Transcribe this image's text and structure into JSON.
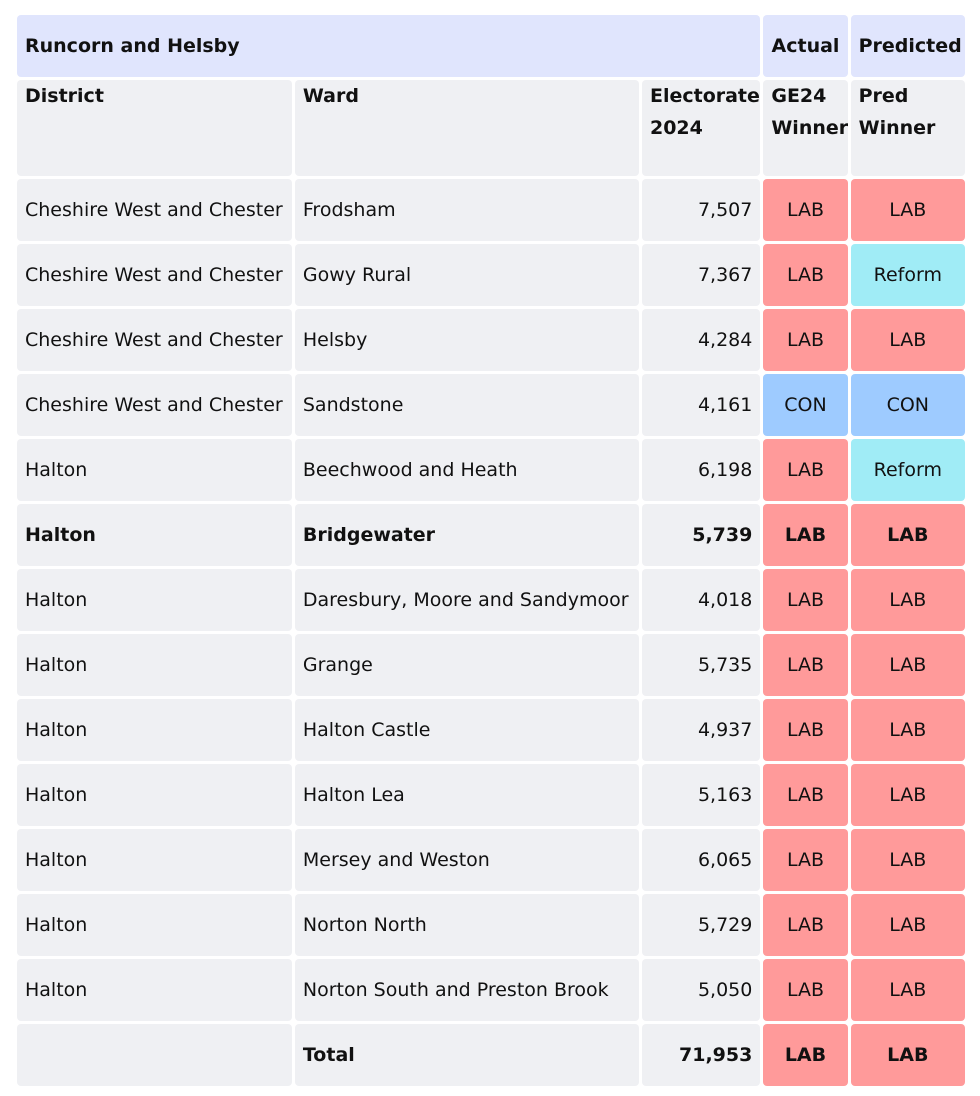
{
  "table": {
    "title": "Runcorn and Helsby",
    "group_headers": {
      "actual": "Actual",
      "predicted": "Predicted"
    },
    "columns": {
      "district": "District",
      "ward": "Ward",
      "electorate_line1": "Electorate",
      "electorate_line2": "2024",
      "ge24_line1": "GE24",
      "ge24_line2": "Winner",
      "pred_line1": "Pred",
      "pred_line2": "Winner"
    },
    "rows": [
      {
        "district": "Cheshire West and Chester",
        "ward": "Frodsham",
        "electorate": "7,507",
        "ge24": "LAB",
        "pred": "LAB"
      },
      {
        "district": "Cheshire West and Chester",
        "ward": "Gowy Rural",
        "electorate": "7,367",
        "ge24": "LAB",
        "pred": "Reform"
      },
      {
        "district": "Cheshire West and Chester",
        "ward": "Helsby",
        "electorate": "4,284",
        "ge24": "LAB",
        "pred": "LAB"
      },
      {
        "district": "Cheshire West and Chester",
        "ward": "Sandstone",
        "electorate": "4,161",
        "ge24": "CON",
        "pred": "CON"
      },
      {
        "district": "Halton",
        "ward": "Beechwood and Heath",
        "electorate": "6,198",
        "ge24": "LAB",
        "pred": "Reform"
      },
      {
        "district": "Halton",
        "ward": "Bridgewater",
        "electorate": "5,739",
        "ge24": "LAB",
        "pred": "LAB"
      },
      {
        "district": "Halton",
        "ward": "Daresbury, Moore and Sandymoor",
        "electorate": "4,018",
        "ge24": "LAB",
        "pred": "LAB"
      },
      {
        "district": "Halton",
        "ward": "Grange",
        "electorate": "5,735",
        "ge24": "LAB",
        "pred": "LAB"
      },
      {
        "district": "Halton",
        "ward": "Halton Castle",
        "electorate": "4,937",
        "ge24": "LAB",
        "pred": "LAB"
      },
      {
        "district": "Halton",
        "ward": "Halton Lea",
        "electorate": "5,163",
        "ge24": "LAB",
        "pred": "LAB"
      },
      {
        "district": "Halton",
        "ward": "Mersey and Weston",
        "electorate": "6,065",
        "ge24": "LAB",
        "pred": "LAB"
      },
      {
        "district": "Halton",
        "ward": "Norton North",
        "electorate": "5,729",
        "ge24": "LAB",
        "pred": "LAB"
      },
      {
        "district": "Halton",
        "ward": "Norton South and Preston Brook",
        "electorate": "5,050",
        "ge24": "LAB",
        "pred": "LAB"
      }
    ],
    "total": {
      "label": "Total",
      "electorate": "71,953",
      "ge24": "LAB",
      "pred": "LAB"
    }
  },
  "colors": {
    "title_bg": "#e0e5fd",
    "cell_bg": "#eff0f3",
    "LAB": "#ff9a9a",
    "CON": "#9ecbff",
    "Reform": "#a0ecf6"
  }
}
